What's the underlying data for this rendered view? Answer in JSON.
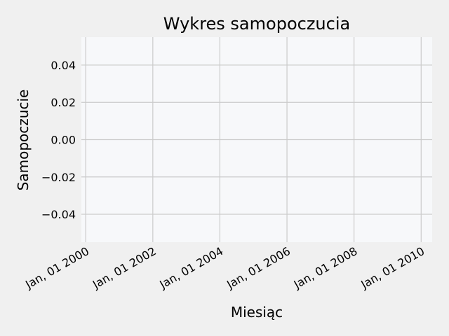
{
  "chart_data": {
    "type": "line",
    "title": "Wykres samopoczucia",
    "xlabel": "Miesiąc",
    "ylabel": "Samopoczucie",
    "x_tick_labels": [
      "Jan, 01 2000",
      "Jan, 01 2002",
      "Jan, 01 2004",
      "Jan, 01 2006",
      "Jan, 01 2008",
      "Jan, 01 2010"
    ],
    "y_tick_labels": [
      "0.04",
      "0.02",
      "0.00",
      "−0.02",
      "−0.04"
    ],
    "y_ticks": [
      0.04,
      0.02,
      0.0,
      -0.02,
      -0.04
    ],
    "xlim": [
      "1999-11-15",
      "2010-05-01"
    ],
    "ylim": [
      -0.055,
      0.055
    ],
    "series": [],
    "grid": true,
    "colors": {
      "figure_background": "#f0f0f0",
      "plot_background": "#f7f8fa",
      "grid": "#cbcbcb",
      "text": "#000000"
    }
  }
}
